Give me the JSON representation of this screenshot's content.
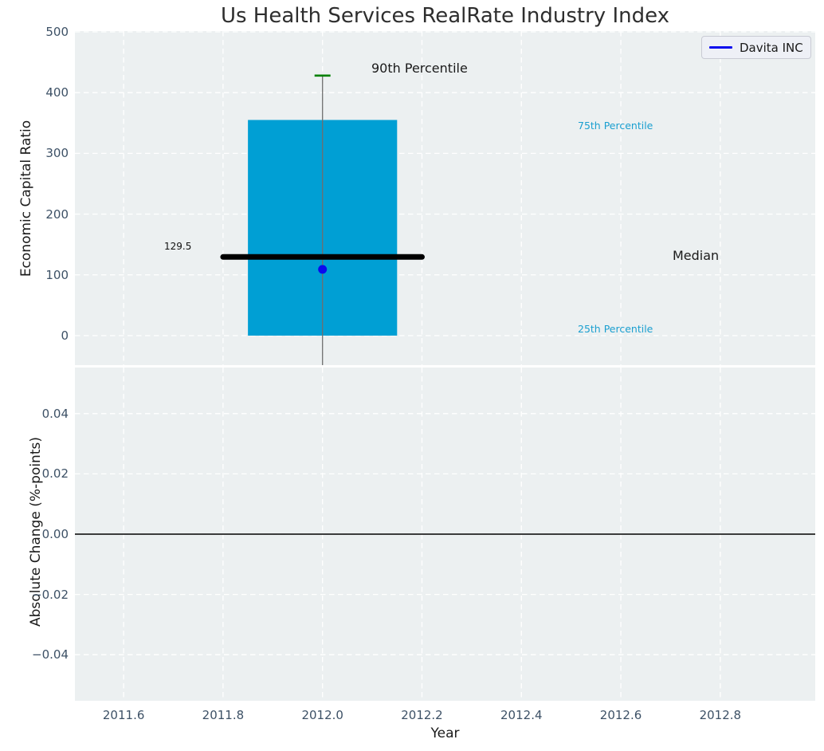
{
  "title": "Us Health Services RealRate Industry Index",
  "colors": {
    "axes_background": "#ecf0f1",
    "grid": "#ffffff",
    "box_fill": "#009fd4",
    "median_line": "#000000",
    "whisker": "#6e6e6e",
    "p90_cap": "#008000",
    "davita": "#0a0aee",
    "zero_line": "#000000",
    "tick_label": "#3d5166",
    "percentile_text": "#1a9fd0",
    "dark_text": "#1a1a1a"
  },
  "chart_data": [
    {
      "type": "box",
      "subplot": "top",
      "title": "Us Health Services RealRate Industry Index",
      "ylabel": "Economic Capital Ratio",
      "xlabel": "",
      "xlim": [
        2011.502,
        2012.991
      ],
      "ylim": [
        -48.6,
        501.3
      ],
      "grid": true,
      "x_tick_values": [
        2011.6,
        2011.8,
        2012.0,
        2012.2,
        2012.4,
        2012.6,
        2012.8
      ],
      "x_tick_labels_visible": false,
      "y_tick_values": [
        0,
        100,
        200,
        300,
        400,
        500
      ],
      "y_tick_labels": [
        "0",
        "100",
        "200",
        "300",
        "400",
        "500"
      ],
      "legend": {
        "position": "upper right",
        "entries": [
          "Davita INC"
        ]
      },
      "boxes": [
        {
          "x": 2012.0,
          "box_width": 0.3,
          "median_line_width": 0.4,
          "cap_width": 0.032,
          "p25": 0,
          "median": 129.5,
          "p75": 355,
          "p90": 428,
          "whisker_extends_below_axis": true
        }
      ],
      "series": [
        {
          "name": "Davita INC",
          "x": [
            2012.0
          ],
          "y": [
            109
          ],
          "marker": "circle"
        }
      ],
      "annotations": [
        {
          "text": "90th Percentile",
          "color": "#1a1a1a"
        },
        {
          "text": "75th Percentile",
          "color": "#1a9fd0"
        },
        {
          "text": "25th Percentile",
          "color": "#1a9fd0"
        },
        {
          "text": "Median",
          "color": "#1a1a1a"
        },
        {
          "text": "129.5",
          "color": "#111111"
        }
      ]
    },
    {
      "type": "line",
      "subplot": "bottom",
      "ylabel": "Absolute Change (%-points)",
      "xlabel": "Year",
      "xlim": [
        2011.502,
        2012.991
      ],
      "ylim": [
        -0.0553,
        0.0553
      ],
      "grid": true,
      "x_tick_values": [
        2011.6,
        2011.8,
        2012.0,
        2012.2,
        2012.4,
        2012.6,
        2012.8
      ],
      "x_tick_labels": [
        "2011.6",
        "2011.8",
        "2012.0",
        "2012.2",
        "2012.4",
        "2012.6",
        "2012.8"
      ],
      "y_tick_values": [
        0.04,
        0.02,
        0,
        -0.02,
        -0.04
      ],
      "y_tick_labels": [
        "0.04",
        "0.02",
        "0.00",
        "−0.02",
        "−0.04"
      ],
      "zero_line": 0,
      "series": []
    }
  ]
}
